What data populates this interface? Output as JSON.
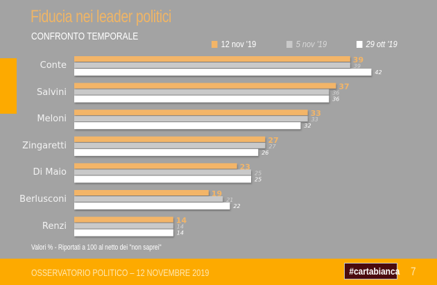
{
  "header": {
    "title": "Fiducia nei leader politici",
    "subtitle": "CONFRONTO TEMPORALE"
  },
  "colors": {
    "background": "#a3a3a3",
    "accent": "#fdaa00",
    "series_1": "#f3b567",
    "series_2": "#c9c9c9",
    "series_3": "#ffffff"
  },
  "chart_data": {
    "type": "bar",
    "orientation": "horizontal",
    "title": "Fiducia nei leader politici",
    "subtitle": "CONFRONTO TEMPORALE",
    "xlabel": "",
    "ylabel": "",
    "xlim": [
      0,
      42
    ],
    "grid": false,
    "legend_position": "top-right",
    "categories": [
      "Conte",
      "Salvini",
      "Meloni",
      "Zingaretti",
      "Di Maio",
      "Berlusconi",
      "Renzi"
    ],
    "series": [
      {
        "name": "12 nov '19",
        "color": "#f3b567",
        "values": [
          39,
          37,
          33,
          27,
          23,
          19,
          14
        ]
      },
      {
        "name": "5 nov '19",
        "color": "#c9c9c9",
        "values": [
          39,
          36,
          33,
          27,
          25,
          21,
          14
        ]
      },
      {
        "name": "29 ott '19",
        "color": "#ffffff",
        "values": [
          42,
          36,
          32,
          26,
          25,
          22,
          14
        ]
      }
    ],
    "note": "Valori % - Riportati a 100 al netto dei \"non saprei\""
  },
  "footer": {
    "text": "OSSERVATORIO POLITICO – 12 NOVEMBRE 2019",
    "brand": "#cartabianca",
    "page_number": "7"
  }
}
